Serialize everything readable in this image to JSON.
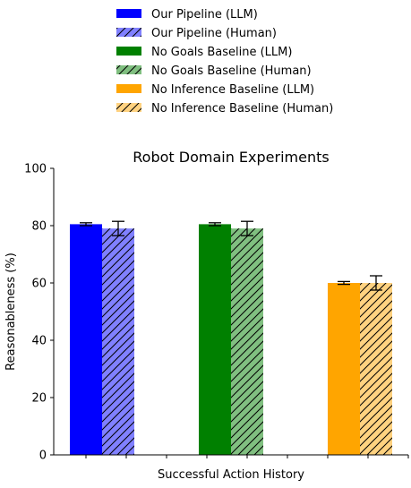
{
  "chart_data": {
    "type": "bar",
    "title": "Robot Domain Experiments",
    "xlabel": "Successful Action History",
    "ylabel": "Reasonableness (%)",
    "ylim": [
      0,
      100
    ],
    "yticks": [
      0,
      20,
      40,
      60,
      80,
      100
    ],
    "grid": false,
    "legend_position": "above plot, centered",
    "series": [
      {
        "name": "Our Pipeline (LLM)",
        "value": 80.5,
        "error": 0.5,
        "color": "#0000ff",
        "hatch": false
      },
      {
        "name": "Our Pipeline (Human)",
        "value": 79.0,
        "error": 2.5,
        "color": "#8080ff",
        "hatch": true
      },
      {
        "name": "No Goals Baseline (LLM)",
        "value": 80.5,
        "error": 0.5,
        "color": "#008000",
        "hatch": false
      },
      {
        "name": "No Goals Baseline (Human)",
        "value": 79.0,
        "error": 2.5,
        "color": "#80bf80",
        "hatch": true
      },
      {
        "name": "No Inference Baseline (LLM)",
        "value": 60.0,
        "error": 0.5,
        "color": "#ffa500",
        "hatch": false
      },
      {
        "name": "No Inference Baseline (Human)",
        "value": 60.0,
        "error": 2.5,
        "color": "#ffd280",
        "hatch": true
      }
    ]
  }
}
